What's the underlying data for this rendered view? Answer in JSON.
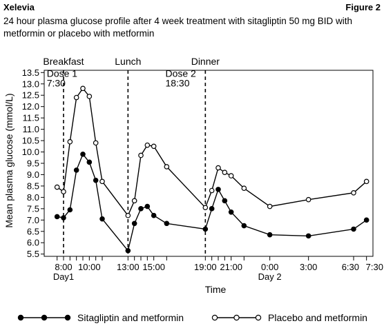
{
  "header": {
    "brand": "Xelevia",
    "figure_label": "Figure 2",
    "subtitle": "24 hour plasma glucose profile after 4 week treatment with sitagliptin 50 mg BID with metformin or placebo with metformin"
  },
  "chart_data": {
    "type": "line",
    "title": "24 hour plasma glucose profile after 4 week treatment with sitagliptin 50 mg BID with metformin or placebo with metformin",
    "xlabel": "Time",
    "ylabel": "Mean plasma glucose (mmol/L)",
    "x_unit": "hours of clock time (8 = 8:00 Day 1, 24 = 0:00 Day 2, 31.5 = 7:30 Day 2)",
    "xlim": [
      6.5,
      32
    ],
    "ylim": [
      5.4,
      13.6
    ],
    "yticks": [
      5.5,
      6.0,
      6.5,
      7.0,
      7.5,
      8.0,
      8.5,
      9.0,
      9.5,
      10.0,
      10.5,
      11.0,
      11.5,
      12.0,
      12.5,
      13.0,
      13.5
    ],
    "ytick_labels": [
      "5.5",
      "6.0",
      "6.5",
      "7.0",
      "7.5",
      "8.0",
      "8.5",
      "9.0",
      "9.5",
      "10.0",
      "10.5",
      "11.0",
      "11.5",
      "12.0",
      "12.5",
      "13.0",
      "13.5"
    ],
    "x_tick_positions": [
      7.5,
      8,
      8.5,
      9,
      9.5,
      10,
      10.5,
      11,
      13,
      13.5,
      14,
      14.5,
      15,
      16,
      19,
      19.5,
      20,
      20.5,
      21,
      22,
      24,
      27,
      30.5,
      31.5
    ],
    "x_labels": [
      {
        "x": 8,
        "text": "8:00"
      },
      {
        "x": 10,
        "text": "10:00"
      },
      {
        "x": 13,
        "text": "13:00"
      },
      {
        "x": 15,
        "text": "15:00"
      },
      {
        "x": 19,
        "text": "19:00"
      },
      {
        "x": 21,
        "text": "21:00"
      },
      {
        "x": 24,
        "text": "0:00"
      },
      {
        "x": 27,
        "text": "3:00"
      },
      {
        "x": 30.5,
        "text": "6:30"
      },
      {
        "x": 31.5,
        "text": "7:30"
      }
    ],
    "x_sublabels": [
      {
        "x": 8,
        "text": "Day1"
      },
      {
        "x": 24,
        "text": "Day 2"
      }
    ],
    "meal_lines": [
      {
        "x": 8,
        "label": "Breakfast"
      },
      {
        "x": 13,
        "label": "Lunch"
      },
      {
        "x": 19,
        "label": "Dinner"
      }
    ],
    "annotations": [
      {
        "x": 6.7,
        "y": 13.4,
        "lines": [
          "Dose 1",
          "7:30"
        ]
      },
      {
        "x": 15.9,
        "y": 13.4,
        "lines": [
          "Dose 2",
          "18:30"
        ]
      }
    ],
    "series": [
      {
        "name": "Sitagliptin and metformin",
        "marker": "filled",
        "x": [
          7.5,
          8,
          8.5,
          9,
          9.5,
          10,
          10.5,
          11,
          13,
          13.5,
          14,
          14.5,
          15,
          16,
          19,
          19.5,
          20,
          20.5,
          21,
          22,
          24,
          27,
          30.5,
          31.5
        ],
        "y": [
          7.15,
          7.1,
          7.45,
          9.2,
          9.9,
          9.55,
          8.75,
          7.05,
          5.65,
          6.85,
          7.5,
          7.6,
          7.2,
          6.85,
          6.6,
          7.5,
          8.35,
          7.85,
          7.35,
          6.75,
          6.35,
          6.3,
          6.6,
          7.0
        ]
      },
      {
        "name": "Placebo and metformin",
        "marker": "open",
        "x": [
          7.5,
          8,
          8.5,
          9,
          9.5,
          10,
          10.5,
          11,
          13,
          13.5,
          14,
          14.5,
          15,
          16,
          19,
          19.5,
          20,
          20.5,
          21,
          22,
          24,
          27,
          30.5,
          31.5
        ],
        "y": [
          8.45,
          8.25,
          10.45,
          12.4,
          12.8,
          12.45,
          10.4,
          8.7,
          7.2,
          7.85,
          9.85,
          10.3,
          10.25,
          9.35,
          7.55,
          8.3,
          9.3,
          9.1,
          8.95,
          8.4,
          7.6,
          7.9,
          8.2,
          8.7
        ]
      }
    ],
    "legend": {
      "position": "bottom"
    }
  }
}
